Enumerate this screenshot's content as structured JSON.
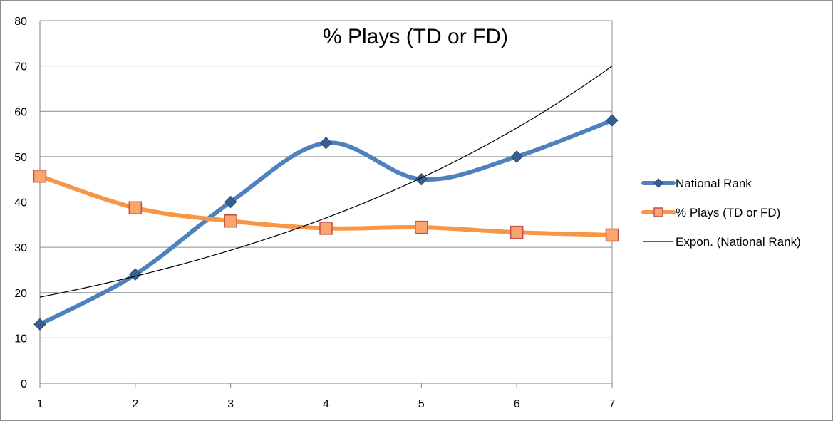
{
  "chart_data": {
    "type": "line",
    "title": "% Plays (TD or FD)",
    "x": [
      1,
      2,
      3,
      4,
      5,
      6,
      7
    ],
    "xlim": [
      1,
      7
    ],
    "ylim": [
      0,
      80
    ],
    "y_ticks": [
      0,
      10,
      20,
      30,
      40,
      50,
      60,
      70,
      80
    ],
    "x_ticks": [
      1,
      2,
      3,
      4,
      5,
      6,
      7
    ],
    "grid": "horizontal",
    "legend_position": "right",
    "series": [
      {
        "name": "National Rank",
        "values": [
          13,
          24,
          40,
          53,
          45,
          50,
          58
        ],
        "color": "#4f81bd",
        "marker": "diamond",
        "smooth": true
      },
      {
        "name": "% Plays (TD or FD)",
        "values": [
          45.7,
          38.7,
          35.8,
          34.2,
          34.4,
          33.3,
          32.7
        ],
        "color": "#f79646",
        "marker_fill": "#f9a66c",
        "marker_stroke": "#c0504d",
        "marker": "square",
        "smooth": true
      },
      {
        "name": "Expon. (National Rank)",
        "trendline": "exponential",
        "values": [
          19.0,
          23.8,
          29.6,
          36.8,
          45.6,
          56.6,
          70.0
        ],
        "color": "#000000"
      }
    ]
  }
}
